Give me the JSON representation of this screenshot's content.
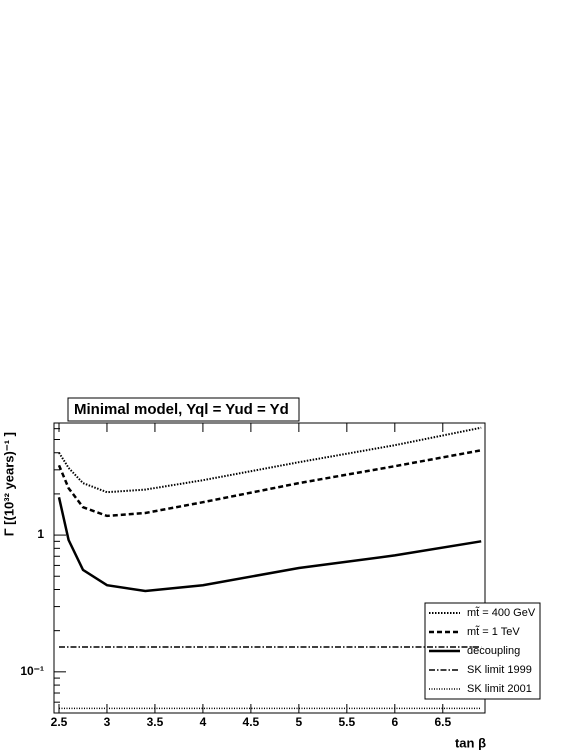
{
  "chart_data": {
    "type": "line",
    "title": "Minimal model,  Yql = Yud = Yd",
    "x_label": "tan β",
    "y_label": "Γ [(10³² years)⁻¹ ]",
    "log_y": true,
    "legend": "lower right",
    "x": [
      2.5,
      2.6,
      2.75,
      3,
      3.4,
      4,
      5,
      6,
      6.9
    ],
    "series": [
      {
        "name": "mt̃ = 400 GeV",
        "color": "#000000",
        "dash": "1.5,1.5",
        "width": 2,
        "values": [
          4.0,
          3.1,
          2.4,
          2.06,
          2.15,
          2.52,
          3.41,
          4.54,
          6.1
        ]
      },
      {
        "name": "mt̃ = 1 TeV",
        "color": "#000000",
        "dash": "5,3",
        "width": 2.5,
        "values": [
          3.24,
          2.2,
          1.6,
          1.38,
          1.45,
          1.74,
          2.4,
          3.19,
          4.17
        ]
      },
      {
        "name": "decoupling",
        "color": "#000000",
        "dash": "none",
        "width": 2.5,
        "values": [
          1.89,
          0.92,
          0.556,
          0.43,
          0.39,
          0.43,
          0.574,
          0.71,
          0.9
        ]
      },
      {
        "name": "SK limit 1999",
        "color": "#000000",
        "dash": "6,2,1.5,2",
        "width": 1.5,
        "values": [
          0.152,
          0.152,
          0.152,
          0.152,
          0.152,
          0.152,
          0.152,
          0.152,
          0.152
        ]
      },
      {
        "name": "SK limit 2001",
        "color": "#000000",
        "dash": "1,1.5",
        "width": 1.5,
        "values": [
          0.054,
          0.054,
          0.054,
          0.054,
          0.054,
          0.054,
          0.054,
          0.054,
          0.054
        ]
      }
    ],
    "xlim": [
      2.448,
      6.94
    ],
    "ylim": [
      0.05,
      6.6
    ],
    "xticks": [
      2.5,
      3,
      3.5,
      4,
      4.5,
      5,
      5.5,
      6,
      6.5
    ],
    "yticks": [
      {
        "value": 0.1,
        "label": "10⁻¹"
      },
      1
    ],
    "yminorticks": [
      0.05,
      0.06,
      0.07,
      0.08,
      0.09,
      0.2,
      0.3,
      0.4,
      0.5,
      0.6,
      0.7,
      0.8,
      0.9,
      2,
      3,
      4,
      5,
      6
    ]
  }
}
